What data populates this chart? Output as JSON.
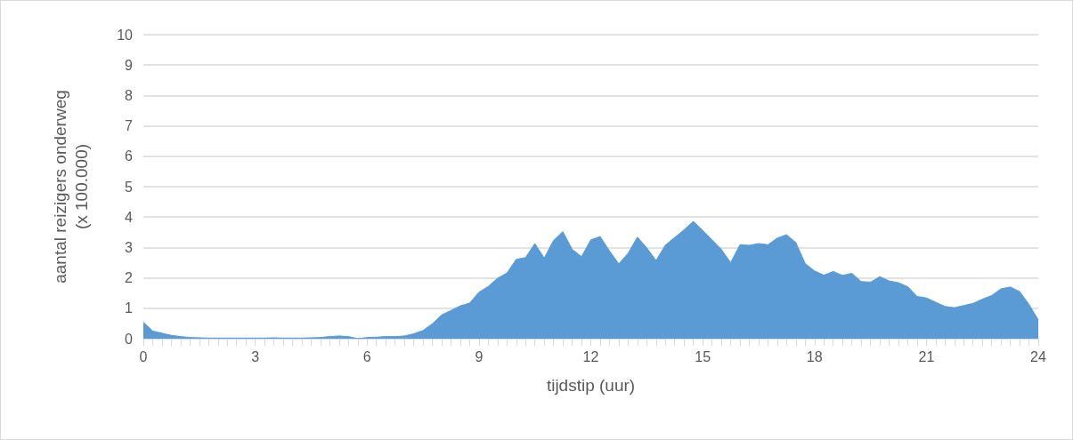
{
  "chart_data": {
    "type": "area",
    "xlabel": "tijdstip (uur)",
    "ylabel": "aantal reizigers onderweg\n(x 100.000)",
    "x": [
      0,
      0.25,
      0.5,
      0.75,
      1,
      1.25,
      1.5,
      1.75,
      2,
      2.25,
      2.5,
      2.75,
      3,
      3.25,
      3.5,
      3.75,
      4,
      4.25,
      4.5,
      4.75,
      5,
      5.25,
      5.5,
      5.75,
      6,
      6.25,
      6.5,
      6.75,
      7,
      7.25,
      7.5,
      7.75,
      8,
      8.25,
      8.5,
      8.75,
      9,
      9.25,
      9.5,
      9.75,
      10,
      10.25,
      10.5,
      10.75,
      11,
      11.25,
      11.5,
      11.75,
      12,
      12.25,
      12.5,
      12.75,
      13,
      13.25,
      13.5,
      13.75,
      14,
      14.25,
      14.5,
      14.75,
      15,
      15.25,
      15.5,
      15.75,
      16,
      16.25,
      16.5,
      16.75,
      17,
      17.25,
      17.5,
      17.75,
      18,
      18.25,
      18.5,
      18.75,
      19,
      19.25,
      19.5,
      19.75,
      20,
      20.25,
      20.5,
      20.75,
      21,
      21.25,
      21.5,
      21.75,
      22,
      22.25,
      22.5,
      22.75,
      23,
      23.25,
      23.5,
      23.75,
      24
    ],
    "series": [
      {
        "color": "#5b9bd5",
        "values": [
          0.54,
          0.25,
          0.18,
          0.11,
          0.07,
          0.04,
          0.03,
          0.02,
          0.02,
          0.02,
          0.02,
          0.02,
          0.02,
          0.02,
          0.03,
          0.02,
          0.02,
          0.02,
          0.03,
          0.04,
          0.07,
          0.09,
          0.07,
          0.0,
          0.04,
          0.05,
          0.07,
          0.07,
          0.09,
          0.16,
          0.27,
          0.49,
          0.78,
          0.93,
          1.08,
          1.17,
          1.53,
          1.72,
          1.99,
          2.16,
          2.61,
          2.67,
          3.13,
          2.65,
          3.23,
          3.52,
          2.94,
          2.7,
          3.25,
          3.36,
          2.89,
          2.46,
          2.81,
          3.34,
          2.99,
          2.57,
          3.08,
          3.33,
          3.58,
          3.86,
          3.56,
          3.25,
          2.94,
          2.5,
          3.09,
          3.07,
          3.13,
          3.09,
          3.31,
          3.42,
          3.16,
          2.47,
          2.23,
          2.09,
          2.21,
          2.08,
          2.15,
          1.88,
          1.86,
          2.04,
          1.9,
          1.84,
          1.71,
          1.39,
          1.34,
          1.2,
          1.06,
          1.02,
          1.09,
          1.16,
          1.3,
          1.42,
          1.64,
          1.7,
          1.55,
          1.13,
          0.62
        ]
      }
    ],
    "xlim": [
      0,
      24
    ],
    "xticks": [
      0,
      {
        "value": 0.25,
        "label": null
      },
      {
        "value": 0.5,
        "label": null
      },
      {
        "value": 0.75,
        "label": null
      },
      {
        "value": 1,
        "label": null
      },
      {
        "value": 1.25,
        "label": null
      },
      {
        "value": 1.5,
        "label": null
      },
      {
        "value": 1.75,
        "label": null
      },
      {
        "value": 2,
        "label": null
      },
      {
        "value": 2.25,
        "label": null
      },
      {
        "value": 2.5,
        "label": null
      },
      {
        "value": 2.75,
        "label": null
      },
      3,
      {
        "value": 3.25,
        "label": null
      },
      {
        "value": 3.5,
        "label": null
      },
      {
        "value": 3.75,
        "label": null
      },
      {
        "value": 4,
        "label": null
      },
      {
        "value": 4.25,
        "label": null
      },
      {
        "value": 4.5,
        "label": null
      },
      {
        "value": 4.75,
        "label": null
      },
      {
        "value": 5,
        "label": null
      },
      {
        "value": 5.25,
        "label": null
      },
      {
        "value": 5.5,
        "label": null
      },
      {
        "value": 5.75,
        "label": null
      },
      6,
      {
        "value": 6.25,
        "label": null
      },
      {
        "value": 6.5,
        "label": null
      },
      {
        "value": 6.75,
        "label": null
      },
      {
        "value": 7,
        "label": null
      },
      {
        "value": 7.25,
        "label": null
      },
      {
        "value": 7.5,
        "label": null
      },
      {
        "value": 7.75,
        "label": null
      },
      {
        "value": 8,
        "label": null
      },
      {
        "value": 8.25,
        "label": null
      },
      {
        "value": 8.5,
        "label": null
      },
      {
        "value": 8.75,
        "label": null
      },
      9,
      {
        "value": 9.25,
        "label": null
      },
      {
        "value": 9.5,
        "label": null
      },
      {
        "value": 9.75,
        "label": null
      },
      {
        "value": 10,
        "label": null
      },
      {
        "value": 10.25,
        "label": null
      },
      {
        "value": 10.5,
        "label": null
      },
      {
        "value": 10.75,
        "label": null
      },
      {
        "value": 11,
        "label": null
      },
      {
        "value": 11.25,
        "label": null
      },
      {
        "value": 11.5,
        "label": null
      },
      {
        "value": 11.75,
        "label": null
      },
      12,
      {
        "value": 12.25,
        "label": null
      },
      {
        "value": 12.5,
        "label": null
      },
      {
        "value": 12.75,
        "label": null
      },
      {
        "value": 13,
        "label": null
      },
      {
        "value": 13.25,
        "label": null
      },
      {
        "value": 13.5,
        "label": null
      },
      {
        "value": 13.75,
        "label": null
      },
      {
        "value": 14,
        "label": null
      },
      {
        "value": 14.25,
        "label": null
      },
      {
        "value": 14.5,
        "label": null
      },
      {
        "value": 14.75,
        "label": null
      },
      15,
      {
        "value": 15.25,
        "label": null
      },
      {
        "value": 15.5,
        "label": null
      },
      {
        "value": 15.75,
        "label": null
      },
      {
        "value": 16,
        "label": null
      },
      {
        "value": 16.25,
        "label": null
      },
      {
        "value": 16.5,
        "label": null
      },
      {
        "value": 16.75,
        "label": null
      },
      {
        "value": 17,
        "label": null
      },
      {
        "value": 17.25,
        "label": null
      },
      {
        "value": 17.5,
        "label": null
      },
      {
        "value": 17.75,
        "label": null
      },
      18,
      {
        "value": 18.25,
        "label": null
      },
      {
        "value": 18.5,
        "label": null
      },
      {
        "value": 18.75,
        "label": null
      },
      {
        "value": 19,
        "label": null
      },
      {
        "value": 19.25,
        "label": null
      },
      {
        "value": 19.5,
        "label": null
      },
      {
        "value": 19.75,
        "label": null
      },
      {
        "value": 20,
        "label": null
      },
      {
        "value": 20.25,
        "label": null
      },
      {
        "value": 20.5,
        "label": null
      },
      {
        "value": 20.75,
        "label": null
      },
      21,
      {
        "value": 21.25,
        "label": null
      },
      {
        "value": 21.5,
        "label": null
      },
      {
        "value": 21.75,
        "label": null
      },
      {
        "value": 22,
        "label": null
      },
      {
        "value": 22.25,
        "label": null
      },
      {
        "value": 22.5,
        "label": null
      },
      {
        "value": 22.75,
        "label": null
      },
      {
        "value": 23,
        "label": null
      },
      {
        "value": 23.25,
        "label": null
      },
      {
        "value": 23.5,
        "label": null
      },
      {
        "value": 23.75,
        "label": null
      },
      24
    ],
    "ylim": [
      0,
      10
    ],
    "yticks": [
      0,
      1,
      2,
      3,
      4,
      5,
      6,
      7,
      8,
      9,
      10
    ],
    "grid": "y",
    "marker": "none"
  }
}
